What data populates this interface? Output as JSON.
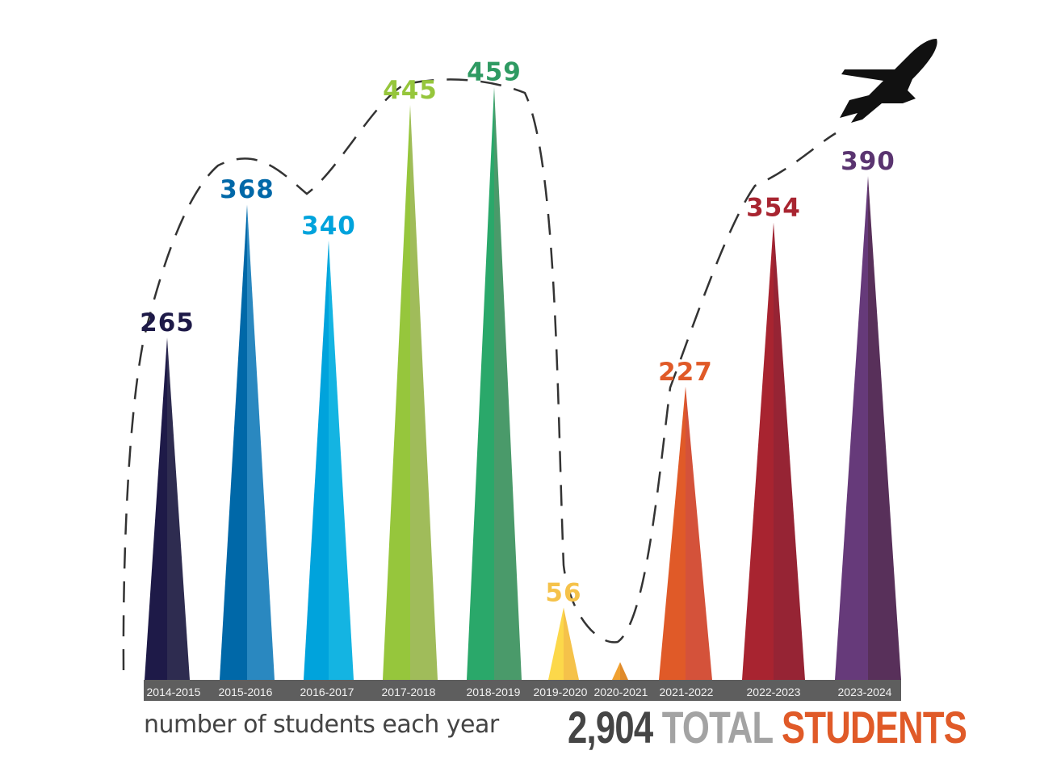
{
  "chart_data": {
    "type": "bar",
    "style": "triangular spikes with dashed trend curve",
    "categories": [
      "2014-2015",
      "2015-2016",
      "2016-2017",
      "2017-2018",
      "2018-2019",
      "2019-2020",
      "2020-2021",
      "2021-2022",
      "2022-2023",
      "2023-2024"
    ],
    "values": [
      265,
      368,
      340,
      445,
      459,
      56,
      0,
      227,
      354,
      390
    ],
    "data_labels": [
      "265",
      "368",
      "340",
      "445",
      "459",
      "56",
      "",
      "227",
      "354",
      "390"
    ],
    "colors": [
      [
        "#1e1a48",
        "#2e2c50"
      ],
      [
        "#0068a8",
        "#2a88c0"
      ],
      [
        "#00a3dc",
        "#14b4e2"
      ],
      [
        "#96c63c",
        "#a0bc5a"
      ],
      [
        "#2aa86a",
        "#4a9a6a"
      ],
      [
        "#fcd84a",
        "#f5c24a"
      ],
      [
        "#f0a030",
        "#e08a2a"
      ],
      [
        "#e05a28",
        "#d4523a"
      ],
      [
        "#a82430",
        "#962434"
      ],
      [
        "#663a7a",
        "#58305a"
      ]
    ],
    "label_colors": [
      "#1e1a48",
      "#0068a8",
      "#00a3dc",
      "#96c63c",
      "#2e9a62",
      "#f5c24a",
      "#e08a2a",
      "#e05a28",
      "#a82430",
      "#5a3470"
    ],
    "axis_bar_color": "#5e5e5e",
    "grid": false,
    "legend": "none",
    "xlabel": "number of students each year",
    "icon": "airplane-icon"
  },
  "total": {
    "number": "2,904",
    "word1": "TOTAL",
    "word2": "STUDENTS"
  }
}
